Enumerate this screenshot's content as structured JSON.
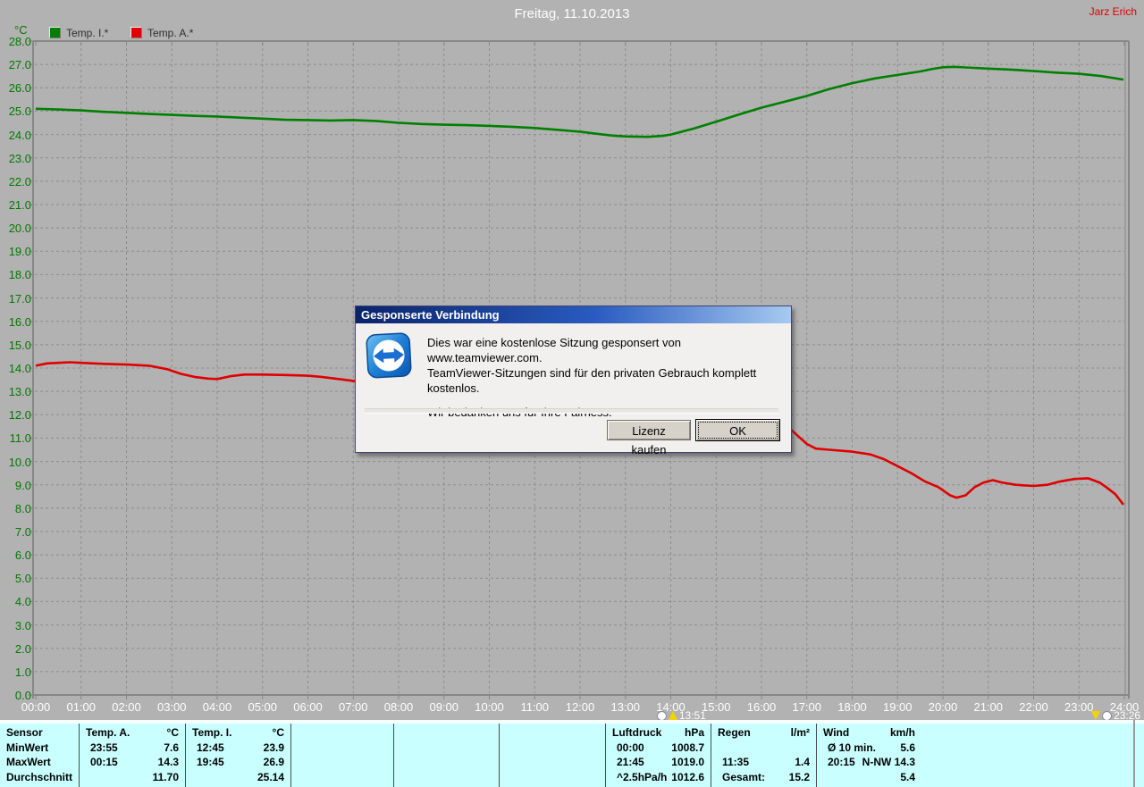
{
  "header": {
    "title": "Freitag, 11.10.2013",
    "author": "Jarz Erich"
  },
  "legend": {
    "unit": "°C",
    "items": [
      {
        "label": "Temp. I.*",
        "color": "#008000"
      },
      {
        "label": "Temp. A.*",
        "color": "#e00000"
      }
    ]
  },
  "chart_data": {
    "type": "line",
    "title": "Freitag, 11.10.2013",
    "xlabel": "",
    "ylabel": "°C",
    "xlim": [
      0,
      24
    ],
    "ylim": [
      0,
      28
    ],
    "grid": true,
    "legend_position": "top-left",
    "background": "#b2b2b2",
    "grid_color": "#8d8d8d",
    "axis_color": "#878787",
    "xticks_labels": [
      "00:00",
      "01:00",
      "02:00",
      "03:00",
      "04:00",
      "05:00",
      "06:00",
      "07:00",
      "08:00",
      "09:00",
      "10:00",
      "11:00",
      "12:00",
      "13:00",
      "14:00",
      "15:00",
      "16:00",
      "17:00",
      "18:00",
      "19:00",
      "20:00",
      "21:00",
      "22:00",
      "23:00",
      "24:00"
    ],
    "yticks_labels": [
      "0.0",
      "1.0",
      "2.0",
      "3.0",
      "4.0",
      "5.0",
      "6.0",
      "7.0",
      "8.0",
      "9.0",
      "10.0",
      "11.0",
      "12.0",
      "13.0",
      "14.0",
      "15.0",
      "16.0",
      "17.0",
      "18.0",
      "19.0",
      "20.0",
      "21.0",
      "22.0",
      "23.0",
      "24.0",
      "25.0",
      "26.0",
      "27.0",
      "28.0"
    ],
    "series": [
      {
        "name": "Temp. I.*",
        "color": "#008000",
        "points": [
          [
            0,
            25.1
          ],
          [
            0.5,
            25.07
          ],
          [
            1,
            25.03
          ],
          [
            1.5,
            24.97
          ],
          [
            2,
            24.93
          ],
          [
            2.5,
            24.88
          ],
          [
            3,
            24.84
          ],
          [
            3.5,
            24.8
          ],
          [
            4,
            24.77
          ],
          [
            4.5,
            24.72
          ],
          [
            5,
            24.68
          ],
          [
            5.5,
            24.63
          ],
          [
            6,
            24.62
          ],
          [
            6.5,
            24.6
          ],
          [
            7,
            24.62
          ],
          [
            7.5,
            24.58
          ],
          [
            8,
            24.5
          ],
          [
            8.5,
            24.45
          ],
          [
            9,
            24.42
          ],
          [
            9.5,
            24.4
          ],
          [
            10,
            24.37
          ],
          [
            10.5,
            24.33
          ],
          [
            11,
            24.28
          ],
          [
            11.5,
            24.2
          ],
          [
            12,
            24.12
          ],
          [
            12.5,
            24.0
          ],
          [
            12.75,
            23.95
          ],
          [
            13,
            23.92
          ],
          [
            13.5,
            23.9
          ],
          [
            13.85,
            23.95
          ],
          [
            14,
            24.0
          ],
          [
            14.5,
            24.25
          ],
          [
            15,
            24.55
          ],
          [
            15.5,
            24.85
          ],
          [
            16,
            25.15
          ],
          [
            16.5,
            25.4
          ],
          [
            17,
            25.65
          ],
          [
            17.5,
            25.95
          ],
          [
            18,
            26.2
          ],
          [
            18.5,
            26.4
          ],
          [
            19,
            26.55
          ],
          [
            19.5,
            26.7
          ],
          [
            19.75,
            26.8
          ],
          [
            20,
            26.88
          ],
          [
            20.25,
            26.9
          ],
          [
            20.5,
            26.87
          ],
          [
            21,
            26.82
          ],
          [
            21.5,
            26.78
          ],
          [
            22,
            26.72
          ],
          [
            22.5,
            26.65
          ],
          [
            23,
            26.6
          ],
          [
            23.5,
            26.5
          ],
          [
            23.98,
            26.35
          ]
        ]
      },
      {
        "name": "Temp. A.*",
        "color": "#e00000",
        "points": [
          [
            0,
            14.1
          ],
          [
            0.25,
            14.2
          ],
          [
            0.5,
            14.22
          ],
          [
            0.75,
            14.25
          ],
          [
            1,
            14.22
          ],
          [
            1.5,
            14.18
          ],
          [
            2,
            14.15
          ],
          [
            2.5,
            14.1
          ],
          [
            2.9,
            13.95
          ],
          [
            3.2,
            13.75
          ],
          [
            3.5,
            13.62
          ],
          [
            3.8,
            13.55
          ],
          [
            4,
            13.53
          ],
          [
            4.3,
            13.65
          ],
          [
            4.6,
            13.72
          ],
          [
            5,
            13.72
          ],
          [
            5.5,
            13.7
          ],
          [
            6,
            13.67
          ],
          [
            6.3,
            13.62
          ],
          [
            6.6,
            13.55
          ],
          [
            7,
            13.45
          ],
          [
            7.3,
            13.32
          ],
          [
            8,
            13.2
          ],
          [
            9,
            13.05
          ],
          [
            10,
            12.85
          ],
          [
            11,
            12.6
          ],
          [
            12,
            12.35
          ],
          [
            13,
            12.1
          ],
          [
            14,
            11.9
          ],
          [
            15,
            11.7
          ],
          [
            16,
            11.55
          ],
          [
            16.6,
            11.45
          ],
          [
            16.8,
            11.1
          ],
          [
            17,
            10.75
          ],
          [
            17.2,
            10.55
          ],
          [
            17.5,
            10.5
          ],
          [
            18,
            10.42
          ],
          [
            18.4,
            10.3
          ],
          [
            18.7,
            10.1
          ],
          [
            19,
            9.8
          ],
          [
            19.3,
            9.5
          ],
          [
            19.6,
            9.15
          ],
          [
            19.9,
            8.9
          ],
          [
            20.16,
            8.55
          ],
          [
            20.3,
            8.45
          ],
          [
            20.5,
            8.55
          ],
          [
            20.7,
            8.9
          ],
          [
            20.9,
            9.1
          ],
          [
            21.1,
            9.2
          ],
          [
            21.3,
            9.1
          ],
          [
            21.6,
            9.0
          ],
          [
            22,
            8.95
          ],
          [
            22.3,
            9.0
          ],
          [
            22.6,
            9.15
          ],
          [
            22.9,
            9.25
          ],
          [
            23.2,
            9.28
          ],
          [
            23.45,
            9.1
          ],
          [
            23.6,
            8.9
          ],
          [
            23.8,
            8.6
          ],
          [
            23.98,
            8.15
          ]
        ]
      }
    ],
    "markers": [
      {
        "label": "13:51",
        "hour": 13.85,
        "direction": "up"
      },
      {
        "label": "23:26",
        "hour": 23.43,
        "direction": "down"
      }
    ]
  },
  "dialog": {
    "title": "Gesponserte Verbindung",
    "lines": [
      "Dies war eine kostenlose Sitzung gesponsert von www.teamviewer.com.",
      "TeamViewer-Sitzungen sind für den privaten Gebrauch komplett kostenlos.",
      "Wir bedanken uns für Ihre Fairness."
    ],
    "buttons": {
      "license": "Lizenz kaufen",
      "ok": "OK"
    }
  },
  "summary_table": {
    "row_labels": [
      "Sensor",
      "MinWert",
      "MaxWert",
      "Durchschnitt"
    ],
    "groups": [
      {
        "name": "Temp. A.",
        "unit": "°C",
        "rows": [
          [
            "23:55",
            "7.6"
          ],
          [
            "00:15",
            "14.3"
          ],
          [
            "",
            "11.70"
          ]
        ]
      },
      {
        "name": "Temp. I.",
        "unit": "°C",
        "rows": [
          [
            "12:45",
            "23.9"
          ],
          [
            "19:45",
            "26.9"
          ],
          [
            "",
            "25.14"
          ]
        ]
      },
      {
        "name": "",
        "unit": "",
        "rows": [
          [
            "",
            ""
          ],
          [
            "",
            ""
          ],
          [
            "",
            ""
          ]
        ]
      },
      {
        "name": "",
        "unit": "",
        "rows": [
          [
            "",
            ""
          ],
          [
            "",
            ""
          ],
          [
            "",
            ""
          ]
        ]
      },
      {
        "name": "",
        "unit": "",
        "rows": [
          [
            "",
            ""
          ],
          [
            "",
            ""
          ],
          [
            "",
            ""
          ]
        ]
      },
      {
        "name": "Luftdruck",
        "unit": "hPa",
        "rows": [
          [
            "00:00",
            "1008.7"
          ],
          [
            "21:45",
            "1019.0"
          ],
          [
            "^2.5hPa/h",
            "1012.6"
          ]
        ]
      },
      {
        "name": "Regen",
        "unit": "l/m²",
        "rows": [
          [
            "",
            ""
          ],
          [
            "11:35",
            "1.4"
          ],
          [
            "Gesamt:",
            "15.2"
          ]
        ]
      },
      {
        "name": "Wind",
        "unit": "km/h",
        "rows": [
          [
            "Ø 10 min.",
            "5.6"
          ],
          [
            "20:15",
            "N-NW 14.3"
          ],
          [
            "",
            "5.4"
          ]
        ]
      }
    ]
  }
}
